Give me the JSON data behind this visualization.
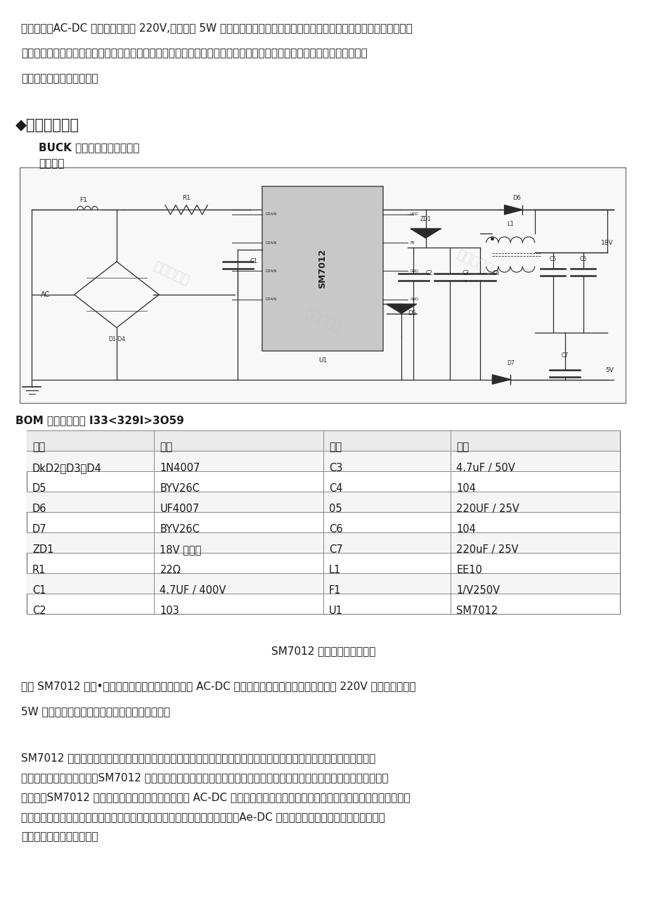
{
  "page_bg": "#ffffff",
  "top_lines": [
    "总的来说，AC-DC 小家电输入电压 220V,输出功率 5W 的降压芯片在现代生活中扮演着非常重要的角色，它为小家电设备的",
    "性能提升和能源节约做出了积极的贡献。我们期待未来能够有更多先进、高效的降压芯片技术应用于小家电领域，为人们的",
    "生活带来更多便利和舒适。"
  ],
  "section_title": "◆典型应用方案",
  "subtitle1": "BUCK 电路一电磁炉应用方案",
  "subtitle2": "原理图：",
  "bom_label": "BOM 衣：技术支持 I33<329I>3O59",
  "table_headers": [
    "位号",
    "参数",
    "位号",
    "参数"
  ],
  "table_data": [
    [
      "DkD2、D3、D4",
      "1N4007",
      "C3",
      "4.7uF / 50V"
    ],
    [
      "D5",
      "BYV26C",
      "C4",
      "104"
    ],
    [
      "D6",
      "UF4007",
      "05",
      "220UF / 25V"
    ],
    [
      "D7",
      "BYV26C",
      "C6",
      "104"
    ],
    [
      "ZD1",
      "18V 稳压管",
      "C7",
      "220uF / 25V"
    ],
    [
      "R1",
      "22Ω",
      "L1",
      "EE10"
    ],
    [
      "C1",
      "4.7UF / 400V",
      "F1",
      "1/V250V"
    ],
    [
      "C2",
      "103",
      "U1",
      "SM7012"
    ]
  ],
  "caption": "SM7012 电磁炉典型应用方案",
  "para2_lines": [
    "其中 SM7012 作为•款优秀的降压芯片，广泛应用于 AC-DC 小家电中。它能够有效地将输入电压 220V 转换为输出功率",
    "5W 的直流电，保证了家电设备的安全稳定运行。"
  ],
  "para3_lines": [
    "SM7012 采用了先进的技术，具有高效节能、稳定性好等优点。它能够有效降低电器的功耗，提高能源利用率，符合节",
    "能环保的发展趋势。同时，SM7012 还具有多种保护功能，如过载保护、过温保护等，可以有效保护家电设备不受损坏。总",
    "的来说，SM7012 作为一款性能优良的降压芯片，在 AC-DC 小家电中有着广泛的应用前景，它不仅能够提高家电设备的性能",
    "和稳定性，还能够满足人们对于节能环保的需求。相信随着科技的不断进步，Ae-DC 小家电将会更加智能化、高效化，为我",
    "们的生活带来更大的便利。"
  ]
}
